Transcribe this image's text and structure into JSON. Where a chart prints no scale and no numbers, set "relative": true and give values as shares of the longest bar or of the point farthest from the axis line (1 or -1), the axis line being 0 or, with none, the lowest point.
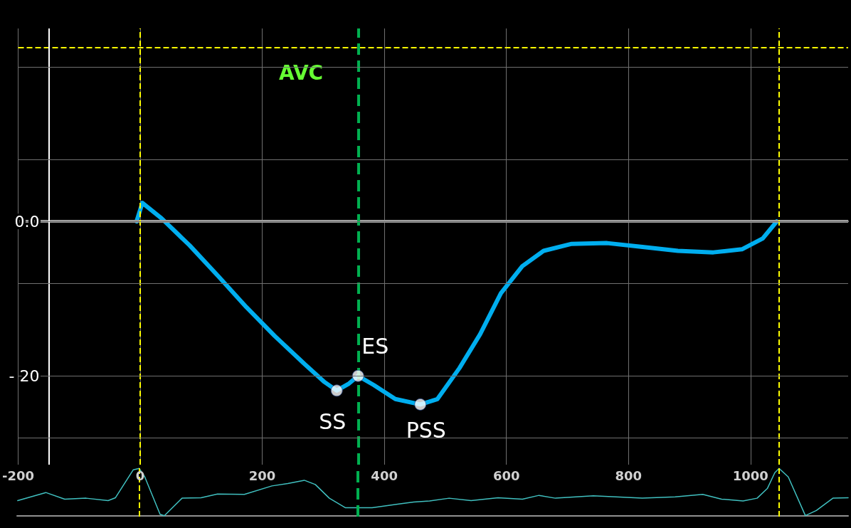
{
  "chart_data": [
    {
      "type": "line",
      "xlim": [
        -200,
        1160
      ],
      "ylim": [
        -31.5,
        25
      ],
      "xticks": [
        -200,
        0,
        200,
        400,
        600,
        800,
        1000
      ],
      "yticks": [
        {
          "value": -28,
          "label": null
        },
        {
          "value": -20,
          "label": "- 20"
        },
        {
          "value": -8,
          "label": null
        },
        {
          "value": 0,
          "label": "0.0"
        },
        {
          "value": 8,
          "label": null
        },
        {
          "value": 20,
          "label": null
        }
      ],
      "grid": true,
      "marker": "none",
      "line_style": "solid",
      "series": [
        {
          "color": "#00aeef",
          "x": [
            -6,
            3.5,
            35,
            81,
            128,
            174,
            220,
            267,
            302,
            322,
            342,
            357,
            383,
            418,
            459,
            487,
            523,
            557,
            591,
            626,
            661,
            707,
            765,
            823,
            881,
            939,
            986,
            1020,
            1043
          ],
          "values": [
            0,
            2.4,
            0.4,
            -3.1,
            -7.1,
            -11.1,
            -14.8,
            -18.3,
            -20.8,
            -21.9,
            -21,
            -20,
            -21.2,
            -23,
            -23.7,
            -23,
            -19,
            -14.6,
            -9.3,
            -5.8,
            -3.8,
            -2.9,
            -2.8,
            -3.3,
            -3.8,
            -4,
            -3.6,
            -2.2,
            0
          ]
        },
        {
          "type": "scatter",
          "marker": "circle",
          "color": "#ffffff",
          "x": [
            322,
            357,
            459
          ],
          "values": [
            -21.9,
            -20,
            -23.7
          ]
        }
      ],
      "annotations": [
        {
          "text": "SS",
          "x": 322,
          "y": -21.9
        },
        {
          "text": "ES",
          "x": 357,
          "y": -20
        },
        {
          "text": "PSS",
          "x": 459,
          "y": -23.7
        }
      ],
      "ref_lines": [
        {
          "axis": "y",
          "value": 0,
          "color": "#a0a0a0",
          "line_style": "solid"
        },
        {
          "axis": "y",
          "value": 22.5,
          "color": "#ffff00",
          "line_style": "dashed"
        },
        {
          "axis": "x",
          "value": 0,
          "color": "#ffff00",
          "line_style": "dashed"
        },
        {
          "axis": "x",
          "value": 1047,
          "color": "#ffff00",
          "line_style": "dashed"
        },
        {
          "axis": "x",
          "value": 358,
          "color": "#00b050",
          "line_style": "dashed",
          "label": "AVC"
        },
        {
          "axis": "x",
          "value": -150,
          "color": "#ffffff",
          "line_style": "solid"
        }
      ]
    },
    {
      "type": "line",
      "relative": true,
      "xlim": [
        -200,
        1160
      ],
      "marker": "none",
      "series": [
        {
          "color": "#40c0c0",
          "x": [
            -199,
            -153,
            -122,
            -87,
            -51,
            -39,
            -10,
            0,
            9,
            34,
            41,
            70,
            101,
            128,
            172,
            217,
            243,
            270,
            288,
            311,
            337,
            381,
            427,
            449,
            475,
            507,
            543,
            587,
            627,
            654,
            681,
            743,
            823,
            877,
            922,
            953,
            988,
            1011,
            1028,
            1040,
            1047,
            1062,
            1090,
            1108,
            1135,
            1160
          ],
          "values": [
            0.32,
            0.49,
            0.35,
            0.37,
            0.32,
            0.38,
            0.97,
            1,
            0.82,
            0.03,
            0,
            0.37,
            0.38,
            0.46,
            0.45,
            0.63,
            0.68,
            0.75,
            0.66,
            0.37,
            0.17,
            0.17,
            0.25,
            0.29,
            0.31,
            0.37,
            0.32,
            0.38,
            0.35,
            0.43,
            0.37,
            0.42,
            0.37,
            0.4,
            0.45,
            0.35,
            0.31,
            0.37,
            0.58,
            0.91,
            1,
            0.82,
            0,
            0.11,
            0.37,
            0.38
          ]
        }
      ],
      "ref_lines": [
        {
          "axis": "x",
          "value": 0,
          "color": "#ffff00",
          "line_style": "dashed"
        },
        {
          "axis": "x",
          "value": 1047,
          "color": "#ffff00",
          "line_style": "dashed"
        },
        {
          "axis": "x",
          "value": 358,
          "color": "#00b050",
          "line_style": "dashed"
        }
      ]
    }
  ]
}
